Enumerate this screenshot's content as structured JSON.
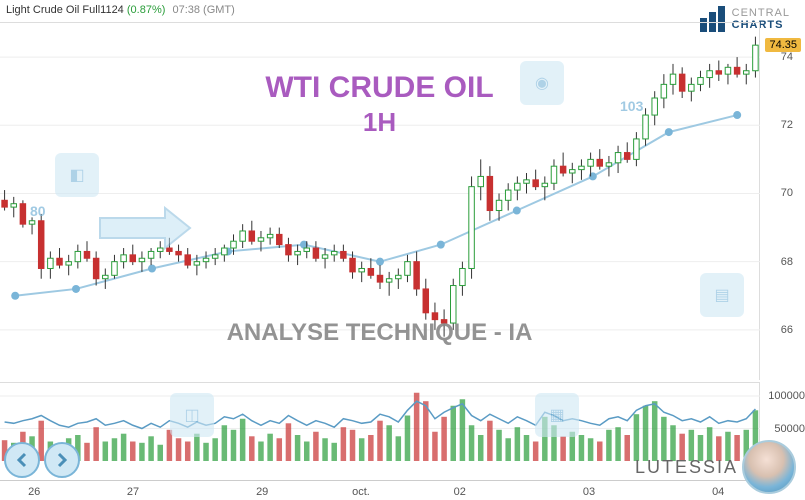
{
  "header": {
    "symbol": "Light Crude Oil Full1124",
    "pct_change": "(0.87%)",
    "time": "07:38 (GMT)"
  },
  "logo": {
    "line1": "CENTRAL",
    "line2": "CHARTS"
  },
  "watermark": {
    "title": "WTI CRUDE OIL",
    "timeframe": "1H",
    "subtitle": "ANALYSE TECHNIQUE - IA",
    "title_color": "#9b3fb5",
    "timeframe_color": "#9b3fb5",
    "subtitle_color": "#888888",
    "title_fontsize": 30,
    "subtitle_fontsize": 24,
    "label_80": "80",
    "label_103": "103"
  },
  "chart": {
    "type": "candlestick",
    "ylim": [
      64.5,
      75
    ],
    "yticks": [
      66,
      68,
      70,
      72,
      74
    ],
    "current_price": "74.35",
    "price_label_bg": "#f0b940",
    "grid_color": "#eeeeee",
    "border_color": "#dddddd",
    "up_color": "#2a9d3a",
    "down_color": "#c73030",
    "wick_color": "#333333",
    "overlay_line_color": "#9ec9e2",
    "overlay_marker_color": "#7ab5d8",
    "candles": [
      {
        "o": 69.8,
        "h": 70.1,
        "l": 69.5,
        "c": 69.6
      },
      {
        "o": 69.6,
        "h": 69.9,
        "l": 69.3,
        "c": 69.7
      },
      {
        "o": 69.7,
        "h": 69.8,
        "l": 69.0,
        "c": 69.1
      },
      {
        "o": 69.1,
        "h": 69.3,
        "l": 68.8,
        "c": 69.2
      },
      {
        "o": 69.2,
        "h": 69.4,
        "l": 67.5,
        "c": 67.8
      },
      {
        "o": 67.8,
        "h": 68.3,
        "l": 67.5,
        "c": 68.1
      },
      {
        "o": 68.1,
        "h": 68.4,
        "l": 67.8,
        "c": 67.9
      },
      {
        "o": 67.9,
        "h": 68.2,
        "l": 67.6,
        "c": 68.0
      },
      {
        "o": 68.0,
        "h": 68.5,
        "l": 67.8,
        "c": 68.3
      },
      {
        "o": 68.3,
        "h": 68.6,
        "l": 68.0,
        "c": 68.1
      },
      {
        "o": 68.1,
        "h": 68.3,
        "l": 67.3,
        "c": 67.5
      },
      {
        "o": 67.5,
        "h": 67.8,
        "l": 67.2,
        "c": 67.6
      },
      {
        "o": 67.6,
        "h": 68.2,
        "l": 67.5,
        "c": 68.0
      },
      {
        "o": 68.0,
        "h": 68.4,
        "l": 67.8,
        "c": 68.2
      },
      {
        "o": 68.2,
        "h": 68.5,
        "l": 67.9,
        "c": 68.0
      },
      {
        "o": 68.0,
        "h": 68.3,
        "l": 67.7,
        "c": 68.1
      },
      {
        "o": 68.1,
        "h": 68.4,
        "l": 67.9,
        "c": 68.3
      },
      {
        "o": 68.3,
        "h": 68.6,
        "l": 68.1,
        "c": 68.4
      },
      {
        "o": 68.4,
        "h": 68.7,
        "l": 68.2,
        "c": 68.3
      },
      {
        "o": 68.3,
        "h": 68.5,
        "l": 68.0,
        "c": 68.2
      },
      {
        "o": 68.2,
        "h": 68.4,
        "l": 67.8,
        "c": 67.9
      },
      {
        "o": 67.9,
        "h": 68.2,
        "l": 67.6,
        "c": 68.0
      },
      {
        "o": 68.0,
        "h": 68.3,
        "l": 67.8,
        "c": 68.1
      },
      {
        "o": 68.1,
        "h": 68.4,
        "l": 67.9,
        "c": 68.2
      },
      {
        "o": 68.2,
        "h": 68.5,
        "l": 68.0,
        "c": 68.4
      },
      {
        "o": 68.4,
        "h": 68.8,
        "l": 68.2,
        "c": 68.6
      },
      {
        "o": 68.6,
        "h": 69.1,
        "l": 68.4,
        "c": 68.9
      },
      {
        "o": 68.9,
        "h": 69.2,
        "l": 68.5,
        "c": 68.6
      },
      {
        "o": 68.6,
        "h": 68.9,
        "l": 68.3,
        "c": 68.7
      },
      {
        "o": 68.7,
        "h": 69.0,
        "l": 68.5,
        "c": 68.8
      },
      {
        "o": 68.8,
        "h": 69.0,
        "l": 68.4,
        "c": 68.5
      },
      {
        "o": 68.5,
        "h": 68.7,
        "l": 68.0,
        "c": 68.2
      },
      {
        "o": 68.2,
        "h": 68.5,
        "l": 67.9,
        "c": 68.3
      },
      {
        "o": 68.3,
        "h": 68.6,
        "l": 68.1,
        "c": 68.4
      },
      {
        "o": 68.4,
        "h": 68.6,
        "l": 68.0,
        "c": 68.1
      },
      {
        "o": 68.1,
        "h": 68.4,
        "l": 67.8,
        "c": 68.2
      },
      {
        "o": 68.2,
        "h": 68.5,
        "l": 68.0,
        "c": 68.3
      },
      {
        "o": 68.3,
        "h": 68.5,
        "l": 68.0,
        "c": 68.1
      },
      {
        "o": 68.1,
        "h": 68.3,
        "l": 67.5,
        "c": 67.7
      },
      {
        "o": 67.7,
        "h": 68.0,
        "l": 67.4,
        "c": 67.8
      },
      {
        "o": 67.8,
        "h": 68.1,
        "l": 67.5,
        "c": 67.6
      },
      {
        "o": 67.6,
        "h": 67.9,
        "l": 67.2,
        "c": 67.4
      },
      {
        "o": 67.4,
        "h": 67.7,
        "l": 67.0,
        "c": 67.5
      },
      {
        "o": 67.5,
        "h": 67.8,
        "l": 67.2,
        "c": 67.6
      },
      {
        "o": 67.6,
        "h": 68.2,
        "l": 67.4,
        "c": 68.0
      },
      {
        "o": 68.0,
        "h": 68.3,
        "l": 67.0,
        "c": 67.2
      },
      {
        "o": 67.2,
        "h": 67.5,
        "l": 66.3,
        "c": 66.5
      },
      {
        "o": 66.5,
        "h": 66.8,
        "l": 66.0,
        "c": 66.3
      },
      {
        "o": 66.3,
        "h": 66.6,
        "l": 65.8,
        "c": 66.2
      },
      {
        "o": 66.2,
        "h": 67.5,
        "l": 66.0,
        "c": 67.3
      },
      {
        "o": 67.3,
        "h": 68.0,
        "l": 67.0,
        "c": 67.8
      },
      {
        "o": 67.8,
        "h": 70.5,
        "l": 67.5,
        "c": 70.2
      },
      {
        "o": 70.2,
        "h": 71.0,
        "l": 69.8,
        "c": 70.5
      },
      {
        "o": 70.5,
        "h": 70.8,
        "l": 69.2,
        "c": 69.5
      },
      {
        "o": 69.5,
        "h": 70.0,
        "l": 69.2,
        "c": 69.8
      },
      {
        "o": 69.8,
        "h": 70.3,
        "l": 69.5,
        "c": 70.1
      },
      {
        "o": 70.1,
        "h": 70.5,
        "l": 69.8,
        "c": 70.3
      },
      {
        "o": 70.3,
        "h": 70.6,
        "l": 70.0,
        "c": 70.4
      },
      {
        "o": 70.4,
        "h": 70.7,
        "l": 70.1,
        "c": 70.2
      },
      {
        "o": 70.2,
        "h": 70.5,
        "l": 69.8,
        "c": 70.3
      },
      {
        "o": 70.3,
        "h": 71.0,
        "l": 70.1,
        "c": 70.8
      },
      {
        "o": 70.8,
        "h": 71.2,
        "l": 70.5,
        "c": 70.6
      },
      {
        "o": 70.6,
        "h": 70.9,
        "l": 70.3,
        "c": 70.7
      },
      {
        "o": 70.7,
        "h": 71.0,
        "l": 70.4,
        "c": 70.8
      },
      {
        "o": 70.8,
        "h": 71.2,
        "l": 70.5,
        "c": 71.0
      },
      {
        "o": 71.0,
        "h": 71.3,
        "l": 70.7,
        "c": 70.8
      },
      {
        "o": 70.8,
        "h": 71.1,
        "l": 70.5,
        "c": 70.9
      },
      {
        "o": 70.9,
        "h": 71.4,
        "l": 70.6,
        "c": 71.2
      },
      {
        "o": 71.2,
        "h": 71.5,
        "l": 70.9,
        "c": 71.0
      },
      {
        "o": 71.0,
        "h": 71.8,
        "l": 70.8,
        "c": 71.6
      },
      {
        "o": 71.6,
        "h": 72.5,
        "l": 71.4,
        "c": 72.3
      },
      {
        "o": 72.3,
        "h": 73.0,
        "l": 72.0,
        "c": 72.8
      },
      {
        "o": 72.8,
        "h": 73.5,
        "l": 72.5,
        "c": 73.2
      },
      {
        "o": 73.2,
        "h": 73.8,
        "l": 72.9,
        "c": 73.5
      },
      {
        "o": 73.5,
        "h": 73.7,
        "l": 72.8,
        "c": 73.0
      },
      {
        "o": 73.0,
        "h": 73.4,
        "l": 72.7,
        "c": 73.2
      },
      {
        "o": 73.2,
        "h": 73.6,
        "l": 73.0,
        "c": 73.4
      },
      {
        "o": 73.4,
        "h": 73.8,
        "l": 73.1,
        "c": 73.6
      },
      {
        "o": 73.6,
        "h": 73.9,
        "l": 73.3,
        "c": 73.5
      },
      {
        "o": 73.5,
        "h": 73.8,
        "l": 73.2,
        "c": 73.7
      },
      {
        "o": 73.7,
        "h": 74.0,
        "l": 73.4,
        "c": 73.5
      },
      {
        "o": 73.5,
        "h": 73.8,
        "l": 73.2,
        "c": 73.6
      },
      {
        "o": 73.6,
        "h": 74.6,
        "l": 73.4,
        "c": 74.35
      }
    ],
    "overlay_points": [
      {
        "x": 0.02,
        "y": 67.0
      },
      {
        "x": 0.1,
        "y": 67.2
      },
      {
        "x": 0.2,
        "y": 67.8
      },
      {
        "x": 0.3,
        "y": 68.3
      },
      {
        "x": 0.4,
        "y": 68.5
      },
      {
        "x": 0.5,
        "y": 68.0
      },
      {
        "x": 0.58,
        "y": 68.5
      },
      {
        "x": 0.68,
        "y": 69.5
      },
      {
        "x": 0.78,
        "y": 70.5
      },
      {
        "x": 0.88,
        "y": 71.8
      },
      {
        "x": 0.97,
        "y": 72.3
      }
    ]
  },
  "volume": {
    "ylim": [
      0,
      120000
    ],
    "yticks": [
      50000,
      100000
    ],
    "ytick_labels": [
      "50000",
      "100000"
    ],
    "line_color": "#5a9bc4",
    "bars": [
      32000,
      28000,
      45000,
      38000,
      62000,
      30000,
      25000,
      35000,
      40000,
      28000,
      52000,
      30000,
      35000,
      42000,
      30000,
      28000,
      38000,
      25000,
      48000,
      35000,
      30000,
      42000,
      28000,
      35000,
      55000,
      48000,
      65000,
      38000,
      30000,
      42000,
      35000,
      58000,
      40000,
      30000,
      45000,
      35000,
      28000,
      52000,
      48000,
      35000,
      40000,
      62000,
      55000,
      38000,
      70000,
      105000,
      92000,
      45000,
      68000,
      85000,
      95000,
      55000,
      40000,
      62000,
      48000,
      35000,
      52000,
      40000,
      30000,
      68000,
      55000,
      38000,
      45000,
      40000,
      35000,
      30000,
      48000,
      52000,
      40000,
      72000,
      85000,
      92000,
      68000,
      55000,
      42000,
      48000,
      40000,
      52000,
      38000,
      45000,
      40000,
      48000,
      78000
    ],
    "line_values": [
      60000,
      58000,
      62000,
      65000,
      70000,
      62000,
      55000,
      52000,
      58000,
      60000,
      65000,
      55000,
      58000,
      62000,
      55000,
      50000,
      58000,
      52000,
      62000,
      58000,
      52000,
      60000,
      55000,
      58000,
      68000,
      65000,
      72000,
      62000,
      55000,
      62000,
      58000,
      70000,
      62000,
      55000,
      62000,
      58000,
      52000,
      65000,
      62000,
      58000,
      60000,
      72000,
      68000,
      60000,
      78000,
      92000,
      85000,
      65000,
      75000,
      82000,
      88000,
      70000,
      62000,
      72000,
      65000,
      58000,
      68000,
      62000,
      55000,
      75000,
      70000,
      62000,
      65000,
      62000,
      58000,
      55000,
      65000,
      68000,
      62000,
      78000,
      85000,
      88000,
      75000,
      70000,
      62000,
      65000,
      60000,
      68000,
      58000,
      62000,
      60000,
      65000,
      80000
    ]
  },
  "x_axis": {
    "ticks": [
      {
        "pos": 0.045,
        "label": "26"
      },
      {
        "pos": 0.175,
        "label": "27"
      },
      {
        "pos": 0.345,
        "label": "29"
      },
      {
        "pos": 0.475,
        "label": "oct."
      },
      {
        "pos": 0.605,
        "label": "02"
      },
      {
        "pos": 0.775,
        "label": "03"
      },
      {
        "pos": 0.945,
        "label": "04"
      }
    ]
  },
  "footer": {
    "brand": "LUTESSIA"
  }
}
